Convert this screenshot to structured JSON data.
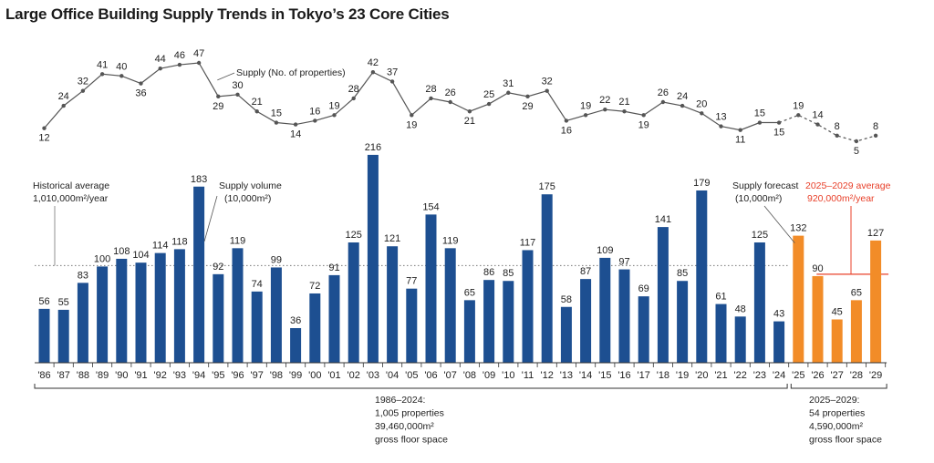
{
  "title": "Large Office Building Supply Trends in Tokyo’s 23 Core Cities",
  "chart_data": {
    "type": "bar",
    "title": "Large Office Building Supply Trends in Tokyo’s 23 Core Cities",
    "categories": [
      "'86",
      "'87",
      "'88",
      "'89",
      "'90",
      "'91",
      "'92",
      "'93",
      "'94",
      "'95",
      "'96",
      "'97",
      "'98",
      "'99",
      "'00",
      "'01",
      "'02",
      "'03",
      "'04",
      "'05",
      "'06",
      "'07",
      "'08",
      "'09",
      "'10",
      "'11",
      "'12",
      "'13",
      "'14",
      "'15",
      "'16",
      "'17",
      "'18",
      "'19",
      "'20",
      "'21",
      "'22",
      "'23",
      "'24",
      "'25",
      "'26",
      "'27",
      "'28",
      "'29"
    ],
    "series": [
      {
        "name": "Supply volume (10,000m²)",
        "type": "bar",
        "values": [
          56,
          55,
          83,
          100,
          108,
          104,
          114,
          118,
          183,
          92,
          119,
          74,
          99,
          36,
          72,
          91,
          125,
          216,
          121,
          77,
          154,
          119,
          65,
          86,
          85,
          117,
          175,
          58,
          87,
          109,
          97,
          69,
          141,
          85,
          179,
          61,
          48,
          125,
          43,
          132,
          90,
          45,
          65,
          127
        ],
        "forecast_from_index": 39,
        "colors": {
          "actual": "#1d4f91",
          "forecast": "#f28c28"
        }
      },
      {
        "name": "Supply (No. of properties)",
        "type": "line",
        "values": [
          12,
          24,
          32,
          41,
          40,
          36,
          44,
          46,
          47,
          29,
          30,
          21,
          15,
          14,
          16,
          19,
          28,
          42,
          37,
          19,
          28,
          26,
          21,
          25,
          31,
          29,
          32,
          16,
          19,
          22,
          21,
          19,
          26,
          24,
          20,
          13,
          11,
          15,
          15,
          19,
          14,
          8,
          5,
          8
        ],
        "dashed_from_index": 38
      }
    ],
    "ylim": [
      0,
      230
    ],
    "reference_lines": [
      {
        "label": "Historical average",
        "value_text": "1,010,000m²/year",
        "value": 101
      },
      {
        "label": "2025–2029 average",
        "value_text": "920,000m²/year",
        "value": 92,
        "color": "#e8402a"
      }
    ],
    "annotations": {
      "supply_count": "Supply (No. of properties)",
      "volume_label": "Supply volume",
      "volume_unit": "(10,000m²)",
      "forecast_label": "Supply forecast",
      "forecast_unit": "(10,000m²)",
      "hist_avg_label": "Historical average",
      "hist_avg_value": "1,010,000m²/year",
      "fc_avg_label": "2025–2029 average",
      "fc_avg_value": "920,000m²/year"
    },
    "period_notes": [
      {
        "range": "1986–2024:",
        "properties": "1,005 properties",
        "area": "39,460,000m²",
        "note": "gross floor space"
      },
      {
        "range": "2025–2029:",
        "properties": "54 properties",
        "area": "4,590,000m²",
        "note": "gross floor space"
      }
    ]
  }
}
